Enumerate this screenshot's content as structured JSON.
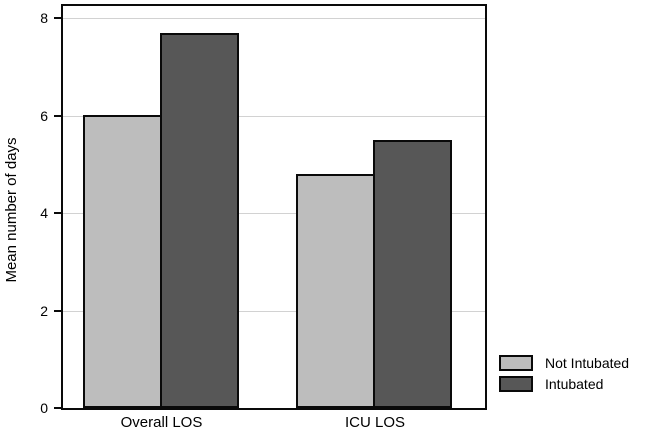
{
  "chart_data": {
    "type": "bar",
    "title": "",
    "xlabel": "",
    "ylabel": "Mean number of days",
    "categories": [
      "Overall LOS",
      "ICU LOS"
    ],
    "series": [
      {
        "name": "Not Intubated",
        "color": "#bdbdbd",
        "values": [
          6.0,
          4.8
        ]
      },
      {
        "name": "Intubated",
        "color": "#575757",
        "values": [
          7.7,
          5.5
        ]
      }
    ],
    "ylim": [
      0,
      8
    ],
    "yticks": [
      0,
      2,
      4,
      6,
      8
    ],
    "ytick_labels": [
      "0",
      "2",
      "4",
      "6",
      "8"
    ],
    "grid": true,
    "gridline_color": "#d2d2d2",
    "bar_border_color": "#0a0a0a",
    "axis_color": "#0a0a0a",
    "legend_position": "bottom-right",
    "plot_background": "#ffffff"
  }
}
